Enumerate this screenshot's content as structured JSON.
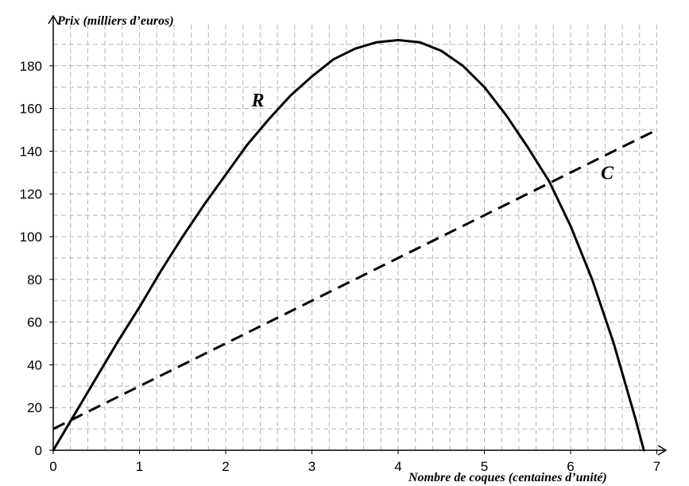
{
  "chart_data": {
    "type": "line",
    "title": "",
    "ylabel": "Prix (milliers d’euros)",
    "xlabel": "Nombre de coques (centaines d’unité)",
    "xlim": [
      0,
      7
    ],
    "ylim": [
      0,
      190
    ],
    "x_ticks": [
      "0",
      "1",
      "2",
      "3",
      "4",
      "5",
      "6",
      "7"
    ],
    "y_ticks": [
      "0",
      "20",
      "40",
      "60",
      "80",
      "100",
      "120",
      "140",
      "160",
      "180"
    ],
    "grid": true,
    "series": [
      {
        "name": "R",
        "style": "solid",
        "color": "#000000",
        "x": [
          0,
          0.25,
          0.5,
          0.75,
          1,
          1.25,
          1.5,
          1.75,
          2,
          2.25,
          2.5,
          2.75,
          3,
          3.25,
          3.5,
          3.75,
          4,
          4.25,
          4.5,
          4.75,
          5,
          5.25,
          5.5,
          5.75,
          6,
          6.25,
          6.5,
          6.75,
          6.85
        ],
        "y": [
          0,
          17,
          34,
          51,
          67,
          84,
          100,
          115,
          129,
          143,
          155,
          166,
          175,
          183,
          188,
          191,
          192,
          191,
          187,
          180,
          170,
          157,
          142,
          126,
          105,
          80,
          50,
          15,
          0
        ]
      },
      {
        "name": "C",
        "style": "dashed",
        "color": "#000000",
        "x": [
          0,
          7
        ],
        "y": [
          10,
          150
        ]
      }
    ],
    "annotations": [
      {
        "text": "R",
        "x": 2.3,
        "y": 161
      },
      {
        "text": "C",
        "x": 6.35,
        "y": 127
      }
    ]
  }
}
